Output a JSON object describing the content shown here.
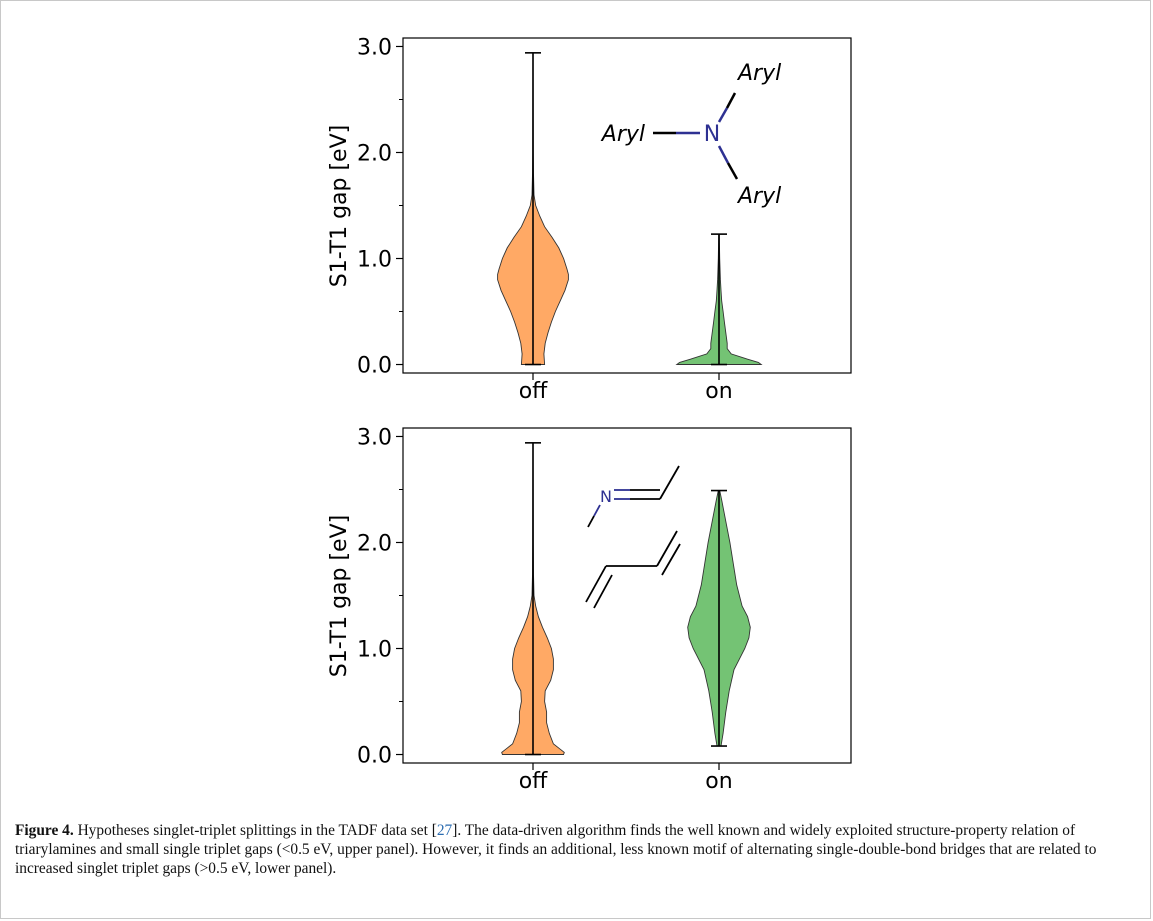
{
  "chart_data": [
    {
      "type": "violin",
      "ylabel": "S1-T1 gap [eV]",
      "categories": [
        "off",
        "on"
      ],
      "ylim": [
        -0.08,
        3.08
      ],
      "yticks": [
        "0.0",
        "1.0",
        "2.0",
        "3.0"
      ],
      "grid": false,
      "series": [
        {
          "category": "off",
          "color": "#ff9a4a",
          "min": 0.0,
          "max": 2.94,
          "density": [
            [
              0.0,
              0.17
            ],
            [
              0.1,
              0.16
            ],
            [
              0.2,
              0.18
            ],
            [
              0.3,
              0.22
            ],
            [
              0.4,
              0.27
            ],
            [
              0.5,
              0.33
            ],
            [
              0.6,
              0.4
            ],
            [
              0.7,
              0.47
            ],
            [
              0.8,
              0.52
            ],
            [
              0.85,
              0.52
            ],
            [
              0.9,
              0.5
            ],
            [
              1.0,
              0.45
            ],
            [
              1.1,
              0.38
            ],
            [
              1.2,
              0.28
            ],
            [
              1.3,
              0.17
            ],
            [
              1.4,
              0.1
            ],
            [
              1.5,
              0.04
            ],
            [
              1.6,
              0.015
            ],
            [
              1.8,
              0.008
            ],
            [
              2.0,
              0.005
            ],
            [
              2.4,
              0.003
            ],
            [
              2.94,
              0.002
            ]
          ]
        },
        {
          "category": "on",
          "color": "#5cb85c",
          "min": 0.0,
          "max": 1.23,
          "density": [
            [
              0.0,
              0.62
            ],
            [
              0.02,
              0.58
            ],
            [
              0.05,
              0.42
            ],
            [
              0.1,
              0.18
            ],
            [
              0.15,
              0.12
            ],
            [
              0.2,
              0.12
            ],
            [
              0.3,
              0.1
            ],
            [
              0.4,
              0.08
            ],
            [
              0.5,
              0.06
            ],
            [
              0.6,
              0.04
            ],
            [
              0.7,
              0.03
            ],
            [
              0.8,
              0.02
            ],
            [
              1.0,
              0.01
            ],
            [
              1.23,
              0.004
            ]
          ]
        }
      ],
      "inset": {
        "type": "structure",
        "atoms": [
          "Aryl",
          "Aryl",
          "Aryl",
          "N"
        ]
      }
    },
    {
      "type": "violin",
      "ylabel": "S1-T1 gap [eV]",
      "categories": [
        "off",
        "on"
      ],
      "ylim": [
        -0.08,
        3.08
      ],
      "yticks": [
        "0.0",
        "1.0",
        "2.0",
        "3.0"
      ],
      "grid": false,
      "series": [
        {
          "category": "off",
          "color": "#ff9a4a",
          "min": 0.0,
          "max": 2.94,
          "density": [
            [
              0.0,
              0.45
            ],
            [
              0.02,
              0.46
            ],
            [
              0.05,
              0.4
            ],
            [
              0.1,
              0.3
            ],
            [
              0.2,
              0.24
            ],
            [
              0.3,
              0.2
            ],
            [
              0.4,
              0.2
            ],
            [
              0.5,
              0.17
            ],
            [
              0.6,
              0.18
            ],
            [
              0.7,
              0.26
            ],
            [
              0.8,
              0.3
            ],
            [
              0.9,
              0.3
            ],
            [
              1.0,
              0.27
            ],
            [
              1.1,
              0.21
            ],
            [
              1.2,
              0.14
            ],
            [
              1.3,
              0.08
            ],
            [
              1.4,
              0.04
            ],
            [
              1.5,
              0.015
            ],
            [
              1.7,
              0.008
            ],
            [
              2.0,
              0.005
            ],
            [
              2.5,
              0.003
            ],
            [
              2.94,
              0.002
            ]
          ]
        },
        {
          "category": "on",
          "color": "#5cb85c",
          "min": 0.08,
          "max": 2.49,
          "density": [
            [
              0.08,
              0.03
            ],
            [
              0.2,
              0.06
            ],
            [
              0.4,
              0.1
            ],
            [
              0.6,
              0.15
            ],
            [
              0.8,
              0.22
            ],
            [
              0.9,
              0.3
            ],
            [
              1.0,
              0.38
            ],
            [
              1.1,
              0.44
            ],
            [
              1.2,
              0.46
            ],
            [
              1.3,
              0.42
            ],
            [
              1.4,
              0.34
            ],
            [
              1.6,
              0.26
            ],
            [
              1.8,
              0.21
            ],
            [
              2.0,
              0.16
            ],
            [
              2.2,
              0.1
            ],
            [
              2.4,
              0.04
            ],
            [
              2.49,
              0.01
            ]
          ]
        }
      ],
      "inset": {
        "type": "structure",
        "atoms": [
          "N"
        ]
      }
    }
  ],
  "caption": {
    "lead": "Figure 4.",
    "text_a": " Hypotheses singlet-triplet splittings in the TADF data set [",
    "ref": "27",
    "text_b": "]. The data-driven algorithm finds the well known and widely exploited structure-property relation of triarylamines and small single triplet gaps (<0.5 eV, upper panel). However, it finds an additional, less known motif of alternating single-double-bond bridges that are related to increased singlet triplet gaps (>0.5 eV, lower panel)."
  }
}
